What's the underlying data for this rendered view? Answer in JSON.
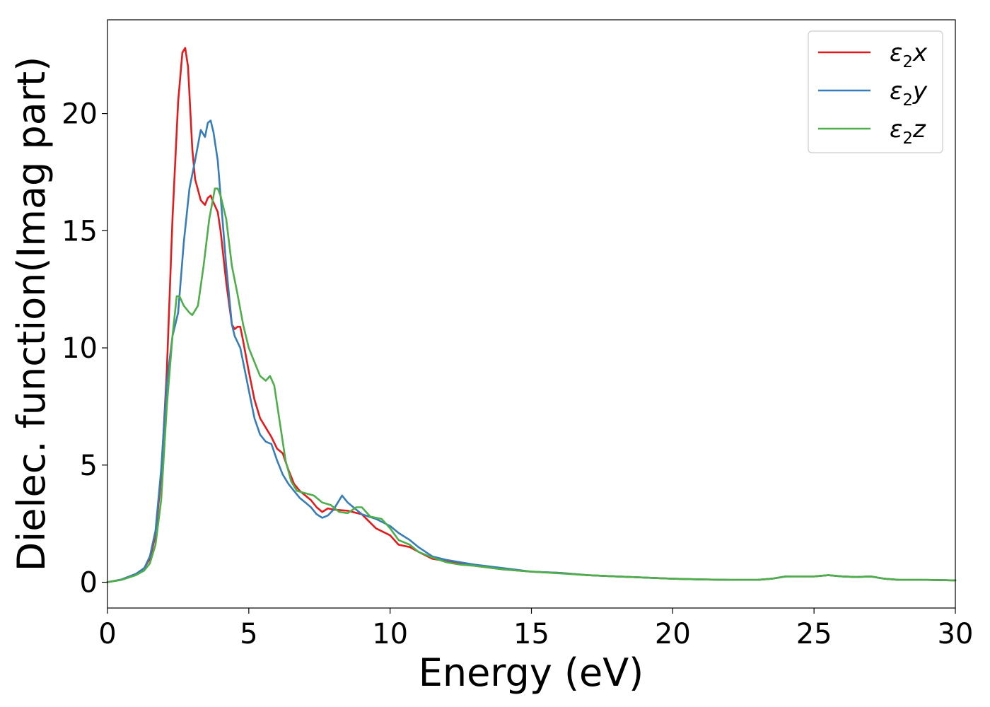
{
  "chart_data": {
    "type": "line",
    "xlabel": "Energy (eV)",
    "ylabel": "Dielec. function(Imag part)",
    "xlim": [
      0,
      30
    ],
    "ylim": [
      -1.1,
      24
    ],
    "xticks": [
      0,
      5,
      10,
      15,
      20,
      25,
      30
    ],
    "yticks": [
      0,
      5,
      10,
      15,
      20
    ],
    "legend_position": "top-right",
    "grid": false,
    "series": [
      {
        "name": "ε₂x",
        "legend": {
          "base": "ε",
          "sub": "2",
          "axis": "x"
        },
        "color": "#e41a1c",
        "points": [
          [
            0,
            0
          ],
          [
            0.5,
            0.12
          ],
          [
            1,
            0.35
          ],
          [
            1.3,
            0.6
          ],
          [
            1.5,
            1.0
          ],
          [
            1.7,
            2.0
          ],
          [
            1.9,
            4.5
          ],
          [
            2.1,
            9
          ],
          [
            2.3,
            15.5
          ],
          [
            2.5,
            20.5
          ],
          [
            2.65,
            22.6
          ],
          [
            2.75,
            22.8
          ],
          [
            2.85,
            22.0
          ],
          [
            3.0,
            18.5
          ],
          [
            3.1,
            17.2
          ],
          [
            3.3,
            16.3
          ],
          [
            3.45,
            16.1
          ],
          [
            3.55,
            16.4
          ],
          [
            3.65,
            16.5
          ],
          [
            3.75,
            16.2
          ],
          [
            3.9,
            15.8
          ],
          [
            4.0,
            15.0
          ],
          [
            4.2,
            12.8
          ],
          [
            4.4,
            11.0
          ],
          [
            4.5,
            10.8
          ],
          [
            4.6,
            10.9
          ],
          [
            4.7,
            10.9
          ],
          [
            4.8,
            10.3
          ],
          [
            5.0,
            9.0
          ],
          [
            5.2,
            7.8
          ],
          [
            5.4,
            7.0
          ],
          [
            5.6,
            6.6
          ],
          [
            5.8,
            6.2
          ],
          [
            6.0,
            5.7
          ],
          [
            6.2,
            5.5
          ],
          [
            6.4,
            4.8
          ],
          [
            6.6,
            4.2
          ],
          [
            6.8,
            3.9
          ],
          [
            7.0,
            3.7
          ],
          [
            7.2,
            3.5
          ],
          [
            7.4,
            3.2
          ],
          [
            7.6,
            3.0
          ],
          [
            7.8,
            3.15
          ],
          [
            8.0,
            3.1
          ],
          [
            8.5,
            3.05
          ],
          [
            9.0,
            2.9
          ],
          [
            9.5,
            2.3
          ],
          [
            10.0,
            2.0
          ],
          [
            10.3,
            1.6
          ],
          [
            10.7,
            1.5
          ],
          [
            11.0,
            1.3
          ],
          [
            11.5,
            1.0
          ],
          [
            12.0,
            0.9
          ],
          [
            12.5,
            0.8
          ],
          [
            13.0,
            0.7
          ],
          [
            14.0,
            0.55
          ],
          [
            15.0,
            0.45
          ],
          [
            16.0,
            0.4
          ],
          [
            17.0,
            0.3
          ],
          [
            18.0,
            0.25
          ],
          [
            19.0,
            0.2
          ],
          [
            20.0,
            0.15
          ],
          [
            21.0,
            0.12
          ],
          [
            22.0,
            0.1
          ],
          [
            23.0,
            0.1
          ],
          [
            23.5,
            0.15
          ],
          [
            24.0,
            0.25
          ],
          [
            24.5,
            0.25
          ],
          [
            25.0,
            0.25
          ],
          [
            25.5,
            0.3
          ],
          [
            26.0,
            0.25
          ],
          [
            26.5,
            0.22
          ],
          [
            27.0,
            0.25
          ],
          [
            27.5,
            0.15
          ],
          [
            28.0,
            0.1
          ],
          [
            29.0,
            0.1
          ],
          [
            30.0,
            0.08
          ]
        ]
      },
      {
        "name": "ε₂y",
        "legend": {
          "base": "ε",
          "sub": "2",
          "axis": "y"
        },
        "color": "#377eb8",
        "points": [
          [
            0,
            0
          ],
          [
            0.5,
            0.12
          ],
          [
            1,
            0.35
          ],
          [
            1.3,
            0.6
          ],
          [
            1.5,
            1.1
          ],
          [
            1.7,
            2.2
          ],
          [
            1.9,
            4.8
          ],
          [
            2.1,
            8.5
          ],
          [
            2.3,
            10.5
          ],
          [
            2.5,
            11.5
          ],
          [
            2.7,
            14.5
          ],
          [
            2.9,
            16.8
          ],
          [
            3.1,
            18.0
          ],
          [
            3.3,
            19.3
          ],
          [
            3.45,
            19.0
          ],
          [
            3.55,
            19.6
          ],
          [
            3.65,
            19.7
          ],
          [
            3.75,
            19.2
          ],
          [
            3.9,
            18.0
          ],
          [
            4.0,
            16.5
          ],
          [
            4.2,
            13.5
          ],
          [
            4.4,
            11.0
          ],
          [
            4.5,
            10.5
          ],
          [
            4.7,
            10.0
          ],
          [
            4.9,
            8.8
          ],
          [
            5.0,
            8.2
          ],
          [
            5.2,
            7.0
          ],
          [
            5.4,
            6.3
          ],
          [
            5.6,
            6.0
          ],
          [
            5.8,
            5.9
          ],
          [
            6.0,
            5.2
          ],
          [
            6.2,
            4.6
          ],
          [
            6.4,
            4.2
          ],
          [
            6.6,
            3.9
          ],
          [
            6.8,
            3.6
          ],
          [
            7.0,
            3.4
          ],
          [
            7.2,
            3.2
          ],
          [
            7.4,
            2.9
          ],
          [
            7.6,
            2.75
          ],
          [
            7.8,
            2.85
          ],
          [
            8.0,
            3.1
          ],
          [
            8.3,
            3.7
          ],
          [
            8.5,
            3.4
          ],
          [
            9.0,
            2.9
          ],
          [
            9.5,
            2.7
          ],
          [
            10.0,
            2.4
          ],
          [
            10.3,
            2.1
          ],
          [
            10.7,
            1.8
          ],
          [
            11.0,
            1.5
          ],
          [
            11.5,
            1.1
          ],
          [
            12.0,
            0.95
          ],
          [
            12.5,
            0.85
          ],
          [
            13.0,
            0.75
          ],
          [
            14.0,
            0.6
          ],
          [
            15.0,
            0.45
          ],
          [
            16.0,
            0.4
          ],
          [
            17.0,
            0.3
          ],
          [
            18.0,
            0.25
          ],
          [
            19.0,
            0.2
          ],
          [
            20.0,
            0.15
          ],
          [
            21.0,
            0.12
          ],
          [
            22.0,
            0.1
          ],
          [
            23.0,
            0.1
          ],
          [
            23.5,
            0.15
          ],
          [
            24.0,
            0.25
          ],
          [
            24.5,
            0.25
          ],
          [
            25.0,
            0.25
          ],
          [
            25.5,
            0.3
          ],
          [
            26.0,
            0.25
          ],
          [
            26.5,
            0.22
          ],
          [
            27.0,
            0.25
          ],
          [
            27.5,
            0.15
          ],
          [
            28.0,
            0.1
          ],
          [
            29.0,
            0.1
          ],
          [
            30.0,
            0.08
          ]
        ]
      },
      {
        "name": "ε₂z",
        "legend": {
          "base": "ε",
          "sub": "2",
          "axis": "z"
        },
        "color": "#4daf4a",
        "points": [
          [
            0,
            0
          ],
          [
            0.5,
            0.1
          ],
          [
            1,
            0.3
          ],
          [
            1.3,
            0.5
          ],
          [
            1.5,
            0.8
          ],
          [
            1.7,
            1.6
          ],
          [
            1.9,
            3.5
          ],
          [
            2.1,
            7.5
          ],
          [
            2.3,
            10.5
          ],
          [
            2.45,
            12.2
          ],
          [
            2.55,
            12.2
          ],
          [
            2.7,
            11.8
          ],
          [
            2.9,
            11.5
          ],
          [
            3.0,
            11.4
          ],
          [
            3.2,
            11.8
          ],
          [
            3.4,
            13.5
          ],
          [
            3.6,
            15.5
          ],
          [
            3.8,
            16.8
          ],
          [
            3.9,
            16.8
          ],
          [
            4.0,
            16.5
          ],
          [
            4.2,
            15.5
          ],
          [
            4.4,
            13.5
          ],
          [
            4.6,
            12.3
          ],
          [
            4.8,
            11.0
          ],
          [
            5.0,
            10.0
          ],
          [
            5.2,
            9.4
          ],
          [
            5.4,
            8.8
          ],
          [
            5.6,
            8.6
          ],
          [
            5.75,
            8.8
          ],
          [
            5.9,
            8.4
          ],
          [
            6.1,
            6.8
          ],
          [
            6.3,
            5.2
          ],
          [
            6.5,
            4.3
          ],
          [
            6.7,
            3.9
          ],
          [
            7.0,
            3.8
          ],
          [
            7.3,
            3.7
          ],
          [
            7.6,
            3.4
          ],
          [
            7.9,
            3.3
          ],
          [
            8.2,
            3.0
          ],
          [
            8.5,
            2.95
          ],
          [
            8.8,
            3.2
          ],
          [
            9.0,
            3.2
          ],
          [
            9.3,
            2.8
          ],
          [
            9.7,
            2.7
          ],
          [
            10.0,
            2.3
          ],
          [
            10.3,
            1.8
          ],
          [
            10.7,
            1.6
          ],
          [
            11.0,
            1.3
          ],
          [
            11.5,
            1.05
          ],
          [
            12.0,
            0.85
          ],
          [
            12.5,
            0.75
          ],
          [
            13.0,
            0.7
          ],
          [
            14.0,
            0.55
          ],
          [
            15.0,
            0.45
          ],
          [
            16.0,
            0.38
          ],
          [
            17.0,
            0.3
          ],
          [
            18.0,
            0.25
          ],
          [
            19.0,
            0.2
          ],
          [
            20.0,
            0.15
          ],
          [
            21.0,
            0.12
          ],
          [
            22.0,
            0.1
          ],
          [
            23.0,
            0.1
          ],
          [
            23.5,
            0.15
          ],
          [
            24.0,
            0.25
          ],
          [
            24.5,
            0.25
          ],
          [
            25.0,
            0.25
          ],
          [
            25.5,
            0.3
          ],
          [
            26.0,
            0.25
          ],
          [
            26.5,
            0.22
          ],
          [
            27.0,
            0.25
          ],
          [
            27.5,
            0.15
          ],
          [
            28.0,
            0.1
          ],
          [
            29.0,
            0.1
          ],
          [
            30.0,
            0.08
          ]
        ]
      }
    ]
  }
}
